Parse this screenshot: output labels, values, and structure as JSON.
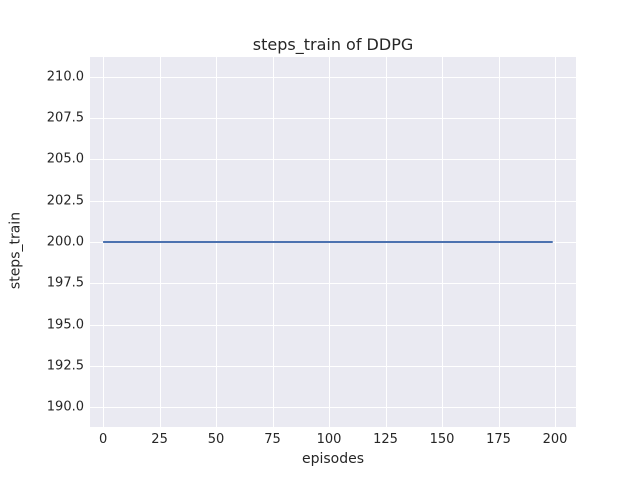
{
  "chart_data": {
    "type": "line",
    "title": "steps_train of DDPG",
    "xlabel": "episodes",
    "ylabel": "steps_train",
    "xlim": [
      -5.8,
      209.3
    ],
    "ylim": [
      188.8,
      211.2
    ],
    "xticks": [
      0,
      25,
      50,
      75,
      100,
      125,
      150,
      175,
      200
    ],
    "xtick_labels": [
      "0",
      "25",
      "50",
      "75",
      "100",
      "125",
      "150",
      "175",
      "200"
    ],
    "yticks": [
      190.0,
      192.5,
      195.0,
      197.5,
      200.0,
      202.5,
      205.0,
      207.5,
      210.0
    ],
    "ytick_labels": [
      "190.0",
      "192.5",
      "195.0",
      "197.5",
      "200.0",
      "202.5",
      "205.0",
      "207.5",
      "210.0"
    ],
    "grid": true,
    "legend": "none",
    "series": [
      {
        "name": "steps_train",
        "color": "#4C72B0",
        "x": [
          0,
          199
        ],
        "y": [
          200,
          200
        ],
        "description": "constant line: steps_train = 200 for every episode from 0 to 199"
      }
    ],
    "colors": {
      "figure_background": "#FFFFFF",
      "axes_background": "#EAEAF2",
      "gridline": "#FFFFFF",
      "text": "#262626",
      "line": "#4C72B0"
    }
  }
}
